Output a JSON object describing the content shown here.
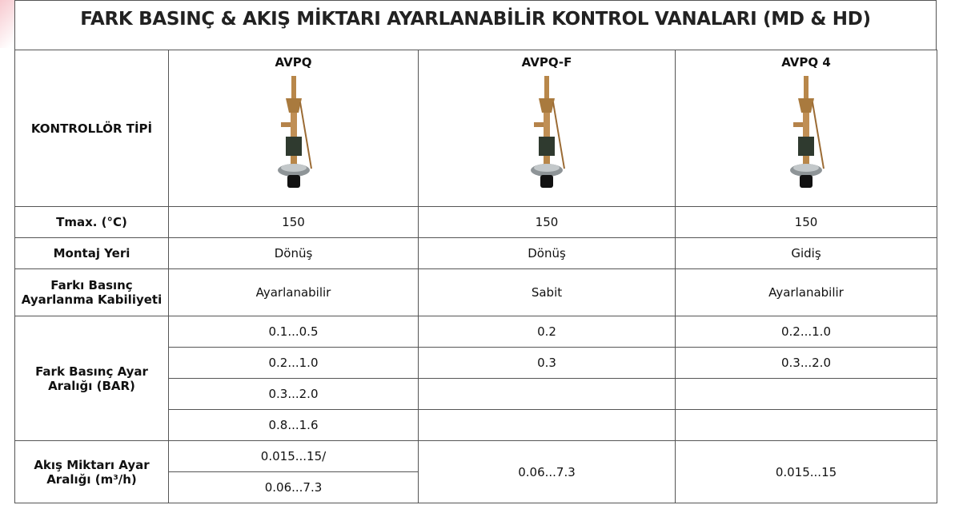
{
  "title": "FARK BASINÇ & AKIŞ MİKTARI AYARLANABİLİR KONTROL VANALARI (MD & HD)",
  "table": {
    "header": {
      "label": "KONTROLLÖR TİPİ",
      "columns": [
        "AVPQ",
        "AVPQ-F",
        "AVPQ 4"
      ]
    },
    "rows": [
      {
        "label": "Tmax. (°C)",
        "cells": [
          "150",
          "150",
          "150"
        ]
      },
      {
        "label": "Montaj Yeri",
        "cells": [
          "Dönüş",
          "Dönüş",
          "Gidiş"
        ]
      },
      {
        "label": "Farkı Basınç Ayarlanma Kabiliyeti",
        "cells": [
          "Ayarlanabilir",
          "Sabit",
          "Ayarlanabilir"
        ]
      },
      {
        "label": "Fark Basınç Ayar Aralığı (BAR)",
        "cells": [
          [
            "0.1...0.5",
            "0.2...1.0",
            "0.3...2.0",
            "0.8...1.6"
          ],
          [
            "0.2",
            "0.3"
          ],
          [
            "0.2...1.0",
            "0.3...2.0"
          ]
        ]
      },
      {
        "label": "Akış Miktarı Ayar Aralığı (m³/h)",
        "cells": [
          [
            "0.015...15/",
            "0.06...7.3"
          ],
          "0.06...7.3",
          "0.015...15"
        ]
      }
    ]
  }
}
